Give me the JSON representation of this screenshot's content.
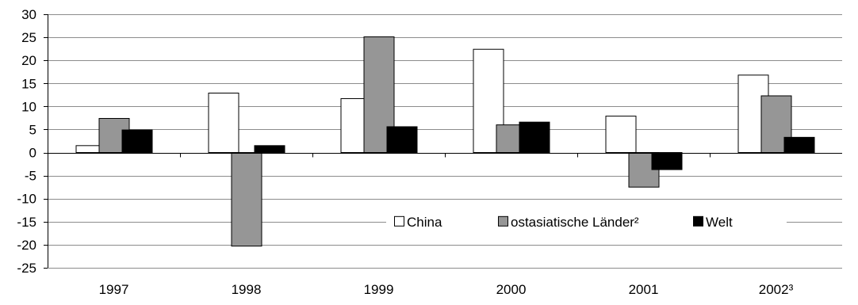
{
  "chart_data": {
    "type": "bar",
    "title": "",
    "xlabel": "",
    "ylabel": "",
    "categories": [
      "1997",
      "1998",
      "1999",
      "2000",
      "2001",
      "2002³"
    ],
    "series": [
      {
        "name": "China",
        "values": [
          1.5,
          12.9,
          11.7,
          22.4,
          7.9,
          16.8
        ],
        "color": "#ffffff"
      },
      {
        "name": "ostasiatische Länder²",
        "values": [
          7.4,
          -20.3,
          25.1,
          6.0,
          -7.5,
          12.3
        ],
        "color": "#969696"
      },
      {
        "name": "Welt",
        "values": [
          4.9,
          1.5,
          5.6,
          6.6,
          -3.7,
          3.3
        ],
        "color": "#000000"
      }
    ],
    "ylim": [
      -25,
      30
    ],
    "yticks": [
      30,
      25,
      20,
      15,
      10,
      5,
      0,
      -5,
      -10,
      -15,
      -20,
      -25
    ],
    "grid": true,
    "legend_position": "inside-lower-right"
  }
}
